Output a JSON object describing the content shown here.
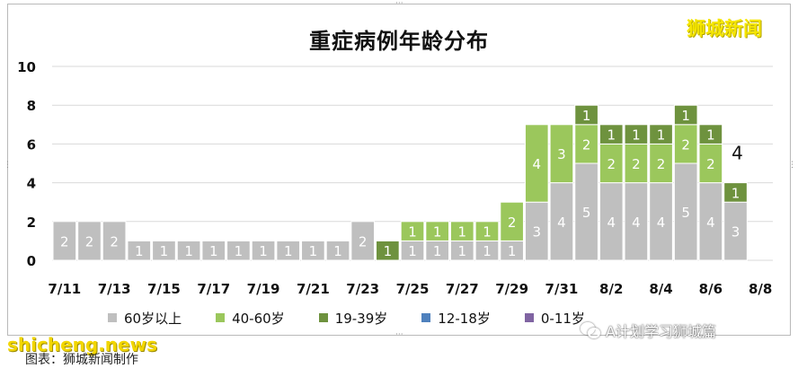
{
  "title": "重症病例年龄分布",
  "brand": "狮城新闻",
  "watermark_site": "shicheng.news",
  "watermark_account": "A计划学习狮城篇",
  "source_note": "图表：狮城新闻制作",
  "colors": {
    "60+": "#bfbfbf",
    "40-60": "#9bc75c",
    "19-39": "#6e923e",
    "12-18": "#4f81bd",
    "0-11": "#8064a2",
    "grid": "#d9d9d9",
    "label_light": "#ffffff",
    "label_dark": "#111111"
  },
  "chart_data": {
    "type": "bar",
    "stacked": true,
    "title": "重症病例年龄分布",
    "ylim": [
      0,
      10
    ],
    "yticks": [
      0,
      2,
      4,
      6,
      8,
      10
    ],
    "grid": true,
    "legend_position": "bottom",
    "categories": [
      "7/11",
      "7/12",
      "7/13",
      "7/14",
      "7/15",
      "7/16",
      "7/17",
      "7/18",
      "7/19",
      "7/20",
      "7/21",
      "7/22",
      "7/23",
      "7/24",
      "7/25",
      "7/26",
      "7/27",
      "7/28",
      "7/29",
      "7/30",
      "7/31",
      "8/1",
      "8/2",
      "8/3",
      "8/4",
      "8/5",
      "8/6",
      "8/7",
      "8/8"
    ],
    "xtick_labels": [
      "7/11",
      "7/13",
      "7/15",
      "7/17",
      "7/19",
      "7/21",
      "7/23",
      "7/25",
      "7/27",
      "7/29",
      "7/31",
      "8/2",
      "8/4",
      "8/6",
      "8/8"
    ],
    "series": [
      {
        "name": "60岁以上",
        "key": "60+",
        "values": [
          2,
          2,
          2,
          1,
          1,
          1,
          1,
          1,
          1,
          1,
          1,
          1,
          2,
          0,
          1,
          1,
          1,
          1,
          1,
          3,
          4,
          5,
          4,
          4,
          4,
          5,
          4,
          3,
          0
        ]
      },
      {
        "name": "40-60岁",
        "key": "40-60",
        "values": [
          0,
          0,
          0,
          0,
          0,
          0,
          0,
          0,
          0,
          0,
          0,
          0,
          0,
          0,
          1,
          1,
          1,
          1,
          2,
          4,
          3,
          2,
          2,
          2,
          2,
          2,
          2,
          0,
          0
        ]
      },
      {
        "name": "19-39岁",
        "key": "19-39",
        "values": [
          0,
          0,
          0,
          0,
          0,
          0,
          0,
          0,
          0,
          0,
          0,
          0,
          0,
          1,
          0,
          0,
          0,
          0,
          0,
          0,
          0,
          1,
          1,
          1,
          1,
          1,
          1,
          1,
          0
        ]
      },
      {
        "name": "12-18岁",
        "key": "12-18",
        "values": [
          0,
          0,
          0,
          0,
          0,
          0,
          0,
          0,
          0,
          0,
          0,
          0,
          0,
          0,
          0,
          0,
          0,
          0,
          0,
          0,
          0,
          0,
          0,
          0,
          0,
          0,
          0,
          0,
          0
        ]
      },
      {
        "name": "0-11岁",
        "key": "0-11",
        "values": [
          0,
          0,
          0,
          0,
          0,
          0,
          0,
          0,
          0,
          0,
          0,
          0,
          0,
          0,
          0,
          0,
          0,
          0,
          0,
          0,
          0,
          0,
          0,
          0,
          0,
          0,
          0,
          0,
          0
        ]
      }
    ],
    "annotations": [
      {
        "category": "8/7",
        "text": "4"
      }
    ]
  }
}
